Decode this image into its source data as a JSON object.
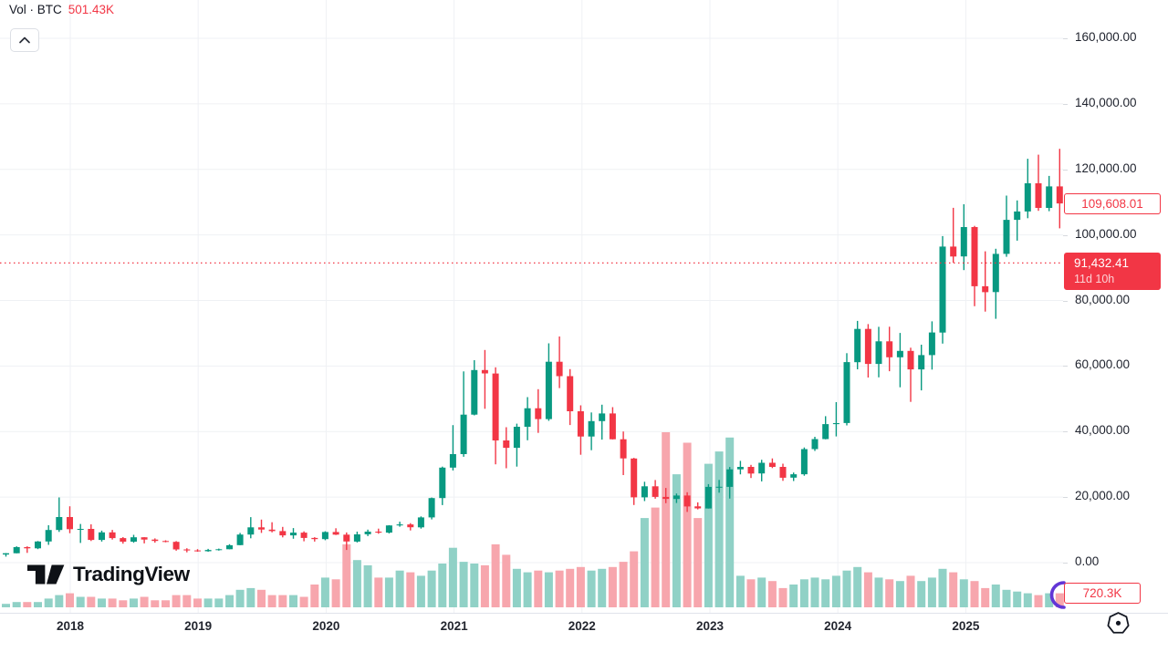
{
  "header": {
    "indicator_label": "Vol · BTC",
    "indicator_value": "501.43K"
  },
  "price_scale": {
    "last_close_label": "109,608.01",
    "countdown_price_label": "91,432.41",
    "countdown_time": "11d 10h",
    "volume_value_label": "720.3K"
  },
  "branding": {
    "logo_text": "TradingView"
  },
  "icons": {
    "chevron_up": "collapse pane",
    "hexagon": "bottom-right hexagon icon",
    "purple_arc": "partial circular badge at last bar"
  },
  "colors": {
    "up": "#089981",
    "down": "#f23645",
    "vol_up": "#90d1c6",
    "vol_down": "#f7a6ad",
    "grid": "#eff1f4",
    "axis_text": "#1e222d",
    "accent_red": "#f23645",
    "separator": "#e0e3eb",
    "purple": "#6236d6"
  },
  "chart_data": {
    "type": "candlestick_with_volume",
    "symbol": "BTC",
    "interval": "1 month",
    "title": "Vol · BTC",
    "legend": [
      "Vol · BTC 501.43K"
    ],
    "grid": true,
    "legend_position": "top-left",
    "y_axis": {
      "min": 0,
      "max": 160000,
      "tick_step": 20000,
      "tick_labels": [
        "0.00",
        "20,000.00",
        "40,000.00",
        "60,000.00",
        "80,000.00",
        "100,000.00",
        "120,000.00",
        "140,000.00",
        "160,000.00"
      ]
    },
    "x_axis": {
      "tick_labels": [
        "2018",
        "2019",
        "2020",
        "2021",
        "2022",
        "2023",
        "2024",
        "2025"
      ]
    },
    "current_price_line": 91432.41,
    "last_close": 109608.01,
    "start_month": "2017-07",
    "ohlc": [
      [
        2480,
        2930,
        1830,
        2875
      ],
      [
        2875,
        4980,
        2840,
        4735
      ],
      [
        4735,
        4980,
        2970,
        4360
      ],
      [
        4360,
        6600,
        4110,
        6450
      ],
      [
        6450,
        11400,
        5440,
        9950
      ],
      [
        9950,
        19900,
        9380,
        13900
      ],
      [
        13900,
        17200,
        9000,
        10200
      ],
      [
        10200,
        11790,
        6000,
        10300
      ],
      [
        10300,
        11700,
        6600,
        6930
      ],
      [
        6930,
        9760,
        6430,
        9240
      ],
      [
        9240,
        9990,
        7040,
        7490
      ],
      [
        7490,
        7790,
        5780,
        6400
      ],
      [
        6400,
        8500,
        6070,
        7730
      ],
      [
        7730,
        7770,
        5880,
        7030
      ],
      [
        7030,
        7410,
        6100,
        6600
      ],
      [
        6600,
        6830,
        6200,
        6340
      ],
      [
        6340,
        6560,
        3650,
        4040
      ],
      [
        4040,
        4410,
        3150,
        3740
      ],
      [
        3740,
        4110,
        3350,
        3460
      ],
      [
        3460,
        4190,
        3350,
        3860
      ],
      [
        3860,
        4290,
        3660,
        4100
      ],
      [
        4100,
        5620,
        4050,
        5320
      ],
      [
        5320,
        9070,
        5320,
        8560
      ],
      [
        8560,
        13880,
        7430,
        10760
      ],
      [
        10760,
        13130,
        9070,
        10080
      ],
      [
        10080,
        12320,
        9230,
        9630
      ],
      [
        9630,
        10900,
        7700,
        8310
      ],
      [
        8310,
        10540,
        7290,
        9150
      ],
      [
        9150,
        9550,
        6520,
        7550
      ],
      [
        7550,
        7760,
        6430,
        7190
      ],
      [
        7190,
        9570,
        6850,
        9350
      ],
      [
        9350,
        10500,
        8440,
        8530
      ],
      [
        8530,
        9210,
        3860,
        6440
      ],
      [
        6440,
        9460,
        6150,
        8630
      ],
      [
        8630,
        10070,
        8100,
        9450
      ],
      [
        9450,
        10380,
        8830,
        9140
      ],
      [
        9140,
        11450,
        8900,
        11350
      ],
      [
        11350,
        12480,
        10950,
        11650
      ],
      [
        11650,
        12050,
        9820,
        10780
      ],
      [
        10780,
        14100,
        10380,
        13800
      ],
      [
        13800,
        19860,
        13200,
        19700
      ],
      [
        19700,
        29300,
        17570,
        28990
      ],
      [
        28990,
        41950,
        28130,
        33110
      ],
      [
        33110,
        58350,
        32300,
        45160
      ],
      [
        45160,
        61780,
        44950,
        58760
      ],
      [
        58760,
        64900,
        46930,
        57720
      ],
      [
        57720,
        59590,
        30000,
        37300
      ],
      [
        37300,
        41330,
        28800,
        35040
      ],
      [
        35040,
        42400,
        29300,
        41460
      ],
      [
        41460,
        50500,
        37330,
        47100
      ],
      [
        47100,
        52920,
        39600,
        43790
      ],
      [
        43790,
        66930,
        43280,
        61300
      ],
      [
        61300,
        69000,
        53260,
        56900
      ],
      [
        56900,
        59040,
        42000,
        46200
      ],
      [
        46200,
        47990,
        32930,
        38480
      ],
      [
        38480,
        45820,
        34300,
        43190
      ],
      [
        43190,
        48190,
        37550,
        45520
      ],
      [
        45520,
        47440,
        37580,
        37640
      ],
      [
        37640,
        40020,
        26700,
        31790
      ],
      [
        31790,
        31960,
        17590,
        19925
      ],
      [
        19925,
        24670,
        18770,
        23290
      ],
      [
        23290,
        25200,
        19520,
        20050
      ],
      [
        20050,
        22800,
        18130,
        19425
      ],
      [
        19425,
        21080,
        18190,
        20490
      ],
      [
        20490,
        21480,
        15480,
        17160
      ],
      [
        17160,
        18390,
        16260,
        16540
      ],
      [
        16540,
        23960,
        16490,
        23130
      ],
      [
        23130,
        25250,
        21350,
        23140
      ],
      [
        23140,
        29180,
        19550,
        28470
      ],
      [
        28470,
        31050,
        26940,
        29230
      ],
      [
        29230,
        29820,
        25810,
        27210
      ],
      [
        27210,
        31400,
        24800,
        30470
      ],
      [
        30470,
        31800,
        28860,
        29230
      ],
      [
        29230,
        30180,
        24950,
        25930
      ],
      [
        25930,
        27480,
        24900,
        26960
      ],
      [
        26960,
        35150,
        26530,
        34650
      ],
      [
        34650,
        38410,
        34080,
        37710
      ],
      [
        37710,
        44700,
        37610,
        42270
      ],
      [
        42270,
        48970,
        38500,
        42580
      ],
      [
        42580,
        63930,
        41880,
        61180
      ],
      [
        61180,
        73780,
        59000,
        71330
      ],
      [
        71330,
        72800,
        56500,
        60640
      ],
      [
        60640,
        71950,
        56550,
        67540
      ],
      [
        67540,
        71990,
        58400,
        62680
      ],
      [
        62680,
        70080,
        53500,
        64620
      ],
      [
        64620,
        65600,
        49050,
        58970
      ],
      [
        58970,
        66500,
        52550,
        63330
      ],
      [
        63330,
        73620,
        58900,
        70220
      ],
      [
        70220,
        99650,
        66840,
        96450
      ],
      [
        96450,
        108270,
        91530,
        93430
      ],
      [
        93430,
        109360,
        89260,
        102400
      ],
      [
        102400,
        102750,
        78260,
        84350
      ],
      [
        84350,
        95000,
        76600,
        82550
      ],
      [
        82550,
        95770,
        74420,
        94210
      ],
      [
        94210,
        112000,
        93340,
        104600
      ],
      [
        104600,
        110530,
        98240,
        107170
      ],
      [
        107170,
        123230,
        105100,
        115760
      ],
      [
        115760,
        124500,
        107350,
        108240
      ],
      [
        108240,
        118000,
        107250,
        114800
      ],
      [
        114800,
        126270,
        102000,
        109608
      ]
    ],
    "volume_rel": [
      2,
      3,
      3,
      3,
      5,
      7,
      8,
      6,
      6,
      5,
      5,
      4,
      5,
      6,
      4,
      4,
      7,
      7,
      5,
      5,
      5,
      7,
      10,
      11,
      10,
      7,
      7,
      7,
      6,
      13,
      17,
      16,
      36,
      27,
      24,
      17,
      17,
      21,
      20,
      18,
      21,
      25,
      34,
      26,
      25,
      24,
      36,
      30,
      22,
      20,
      21,
      20,
      21,
      22,
      23,
      21,
      22,
      23,
      26,
      32,
      51,
      57,
      100,
      76,
      94,
      51,
      82,
      89,
      97,
      18,
      16,
      17,
      15,
      11,
      13,
      16,
      17,
      16,
      18,
      21,
      23,
      20,
      17,
      16,
      15,
      18,
      15,
      17,
      22,
      20,
      16,
      15,
      11,
      13,
      10,
      9,
      8,
      7,
      8,
      8
    ],
    "volume_note": "relative bar heights (100 = tallest). Only on-screen volume values: current 501.43K, axis label 720.3K"
  }
}
